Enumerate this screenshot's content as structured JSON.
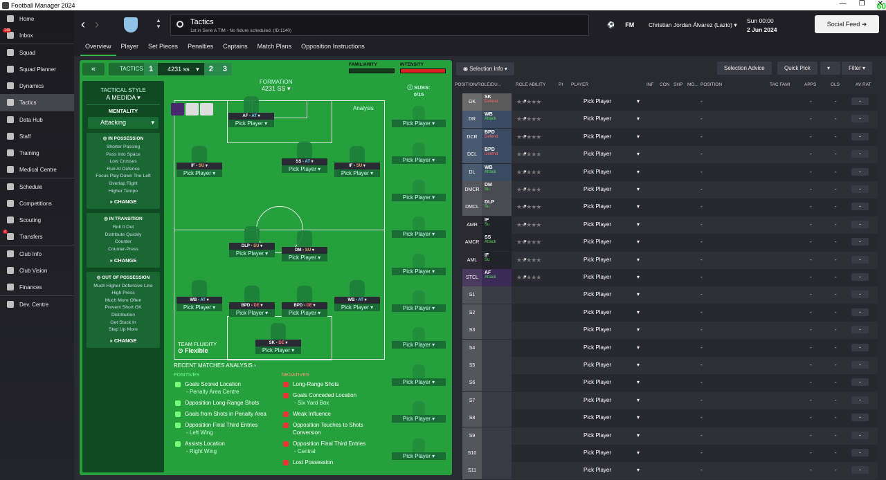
{
  "window": {
    "title": "Football Manager 2024",
    "fps": "60"
  },
  "sidebar": {
    "items": [
      {
        "label": "Home",
        "badge": ""
      },
      {
        "label": "Inbox",
        "badge": "149"
      },
      {
        "label": "Squad",
        "badge": ""
      },
      {
        "label": "Squad Planner",
        "badge": ""
      },
      {
        "label": "Dynamics",
        "badge": ""
      },
      {
        "label": "Tactics",
        "badge": ""
      },
      {
        "label": "Data Hub",
        "badge": ""
      },
      {
        "label": "Staff",
        "badge": ""
      },
      {
        "label": "Training",
        "badge": ""
      },
      {
        "label": "Medical Centre",
        "badge": ""
      },
      {
        "label": "Schedule",
        "badge": ""
      },
      {
        "label": "Competitions",
        "badge": ""
      },
      {
        "label": "Scouting",
        "badge": ""
      },
      {
        "label": "Transfers",
        "badge": "2"
      },
      {
        "label": "Club Info",
        "badge": ""
      },
      {
        "label": "Club Vision",
        "badge": ""
      },
      {
        "label": "Finances",
        "badge": ""
      },
      {
        "label": "Dev. Centre",
        "badge": ""
      }
    ]
  },
  "header": {
    "page_title": "Tactics",
    "page_subtitle": "1st in Serie A TIM - No fixture scheduled. (ID:1140)",
    "fm": "FM",
    "manager": "Christian Jordan Álvarez (Lazio)",
    "day": "Sun 00:00",
    "date": "2 Jun 2024",
    "social": "Social Feed"
  },
  "tabs": [
    "Overview",
    "Player",
    "Set Pieces",
    "Penalties",
    "Captains",
    "Match Plans",
    "Opposition Instructions"
  ],
  "tactics": {
    "label": "TACTICS",
    "formation_selector": "4231 ss",
    "slots": [
      "1",
      "2",
      "3"
    ],
    "familiarity": "FAMILIARITY",
    "intensity": "INTENSITY",
    "intensity_level": 1.0
  },
  "style": {
    "heading": "TACTICAL STYLE",
    "value": "A MEDIDA",
    "mentality_h": "MENTALITY",
    "mentality": "Attacking",
    "possession": {
      "title": "IN POSSESSION",
      "items": [
        "Shorter Passing",
        "Pass Into Space",
        "Low Crosses",
        "Run At Defence",
        "Focus Play Down The Left",
        "Overlap Right",
        "Higher Tempo"
      ]
    },
    "transition": {
      "title": "IN TRANSITION",
      "items": [
        "Roll It Out",
        "Distribute Quickly",
        "Counter",
        "Counter-Press"
      ]
    },
    "outposs": {
      "title": "OUT OF POSSESSION",
      "items": [
        "Much Higher Defensive Line",
        "High Press",
        "Much More Often",
        "Prevent Short GK",
        "Distribution",
        "Get Stuck In",
        "Step Up More"
      ]
    },
    "change": "CHANGE"
  },
  "formation": {
    "heading": "FORMATION",
    "value": "4231 SS",
    "analysis": "Analysis",
    "fluidity_h": "TEAM FLUIDITY",
    "fluidity": "Flexible",
    "pick": "Pick Player",
    "players": [
      {
        "r": "AF",
        "d": "AT"
      },
      {
        "r": "IF",
        "d": "SU"
      },
      {
        "r": "SS",
        "d": "AT"
      },
      {
        "r": "IF",
        "d": "SU"
      },
      {
        "r": "DLP",
        "d": "SU"
      },
      {
        "r": "DM",
        "d": "SU"
      },
      {
        "r": "WB",
        "d": "AT"
      },
      {
        "r": "BPD",
        "d": "DE"
      },
      {
        "r": "BPD",
        "d": "DE"
      },
      {
        "r": "WB",
        "d": "AT"
      },
      {
        "r": "SK",
        "d": "DE"
      }
    ]
  },
  "subs": {
    "heading": "SUBS:",
    "count": "0/15"
  },
  "analysis": {
    "heading": "RECENT MATCHES ANALYSIS",
    "pos_h": "POSITIVES",
    "neg_h": "NEGATIVES",
    "positives": [
      {
        "t": "Goals Scored Location",
        "s": "- Penalty Area Centre"
      },
      {
        "t": "Opposition Long-Range Shots",
        "s": ""
      },
      {
        "t": "Goals from Shots in Penalty Area",
        "s": ""
      },
      {
        "t": "Opposition Final Third Entries",
        "s": "- Left Wing"
      },
      {
        "t": "Assists Location",
        "s": "- Right Wing"
      }
    ],
    "negatives": [
      {
        "t": "Long-Range Shots",
        "s": ""
      },
      {
        "t": "Goals Conceded Location",
        "s": "- Six Yard Box"
      },
      {
        "t": "Weak Influence",
        "s": ""
      },
      {
        "t": "Opposition Touches to Shots Conversion",
        "s": ""
      },
      {
        "t": "Opposition Final Third Entries",
        "s": "- Central"
      },
      {
        "t": "Lost Possession",
        "s": ""
      }
    ]
  },
  "list": {
    "sel_info": "Selection Info",
    "advice": "Selection Advice",
    "quick": "Quick Pick",
    "filter": "Filter",
    "cols": [
      "POSITION/ROLE/DU...",
      "ROLE ABILITY",
      "PI",
      "PLAYER",
      "INF",
      "CON",
      "SHP",
      "MO...",
      "POSITION",
      "TAC FAMI",
      "APPS",
      "GLS",
      "AV RAT"
    ],
    "rows": [
      {
        "p": "GK",
        "r": "SK",
        "d": "Defend"
      },
      {
        "p": "DR",
        "r": "WB",
        "d": "Attack"
      },
      {
        "p": "DCR",
        "r": "BPD",
        "d": "Defend"
      },
      {
        "p": "DCL",
        "r": "BPD",
        "d": "Defend"
      },
      {
        "p": "DL",
        "r": "WB",
        "d": "Attack"
      },
      {
        "p": "DMCR",
        "r": "DM",
        "d": "Su"
      },
      {
        "p": "DMCL",
        "r": "DLP",
        "d": "Su"
      },
      {
        "p": "AMR",
        "r": "IF",
        "d": "Su"
      },
      {
        "p": "AMCR",
        "r": "SS",
        "d": "Attack"
      },
      {
        "p": "AML",
        "r": "IF",
        "d": "Su"
      },
      {
        "p": "STCL",
        "r": "AF",
        "d": "Attack"
      },
      {
        "p": "S1",
        "r": "",
        "d": ""
      },
      {
        "p": "S2",
        "r": "",
        "d": ""
      },
      {
        "p": "S3",
        "r": "",
        "d": ""
      },
      {
        "p": "S4",
        "r": "",
        "d": ""
      },
      {
        "p": "S5",
        "r": "",
        "d": ""
      },
      {
        "p": "S6",
        "r": "",
        "d": ""
      },
      {
        "p": "S7",
        "r": "",
        "d": ""
      },
      {
        "p": "S8",
        "r": "",
        "d": ""
      },
      {
        "p": "S9",
        "r": "",
        "d": ""
      },
      {
        "p": "S10",
        "r": "",
        "d": ""
      },
      {
        "p": "S11",
        "r": "",
        "d": ""
      }
    ],
    "pick": "Pick Player",
    "dash": "-"
  }
}
